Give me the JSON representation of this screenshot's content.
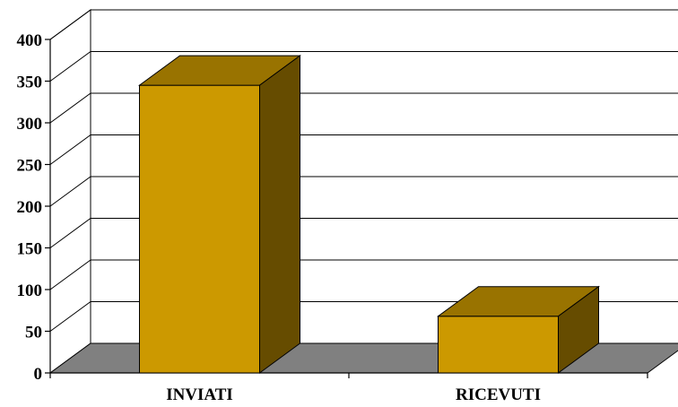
{
  "chart_data": {
    "type": "bar",
    "categories": [
      "INVIATI",
      "RICEVUTI"
    ],
    "values": [
      345,
      68
    ],
    "ylim": [
      0,
      400
    ],
    "yticks": [
      "0",
      "50",
      "100",
      "150",
      "200",
      "250",
      "300",
      "350",
      "400"
    ],
    "grid": true,
    "style": "3d",
    "colors": {
      "bar_front": "#CC9900",
      "bar_top": "#997300",
      "bar_side": "#664C00",
      "floor": "#808080",
      "wall": "#ffffff",
      "gridline": "#000000"
    }
  }
}
